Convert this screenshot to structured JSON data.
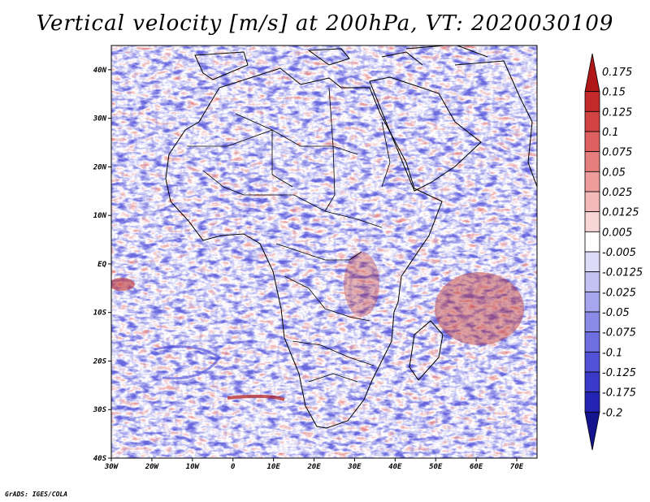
{
  "title": "Vertical velocity [m/s] at 200hPa, VT: 2020030109",
  "map": {
    "lon_range": [
      -30,
      75
    ],
    "lat_range": [
      -40,
      45
    ],
    "lon_ticks": [
      "30W",
      "20W",
      "10W",
      "0",
      "10E",
      "20E",
      "30E",
      "40E",
      "50E",
      "60E",
      "70E"
    ],
    "lat_ticks": [
      "40N",
      "30N",
      "20N",
      "10N",
      "EQ",
      "10S",
      "20S",
      "30S",
      "40S"
    ]
  },
  "colorbar": {
    "labels": [
      "0.175",
      "0.15",
      "0.125",
      "0.1",
      "0.075",
      "0.05",
      "0.025",
      "0.0125",
      "0.005",
      "-0.005",
      "-0.0125",
      "-0.025",
      "-0.05",
      "-0.075",
      "-0.1",
      "-0.125",
      "-0.175",
      "-0.2"
    ],
    "colors": [
      "#b01818",
      "#c42a2a",
      "#d24444",
      "#de6060",
      "#e67e7e",
      "#ee9c9c",
      "#f4baba",
      "#f9d6d6",
      "#ffffff",
      "#dcdcf9",
      "#c2c2f3",
      "#a6a6ee",
      "#8a8ae8",
      "#6e6ee0",
      "#5252d6",
      "#3a3ac8",
      "#2424b4",
      "#14148e"
    ]
  },
  "credit": "GrADS: IGES/COLA"
}
